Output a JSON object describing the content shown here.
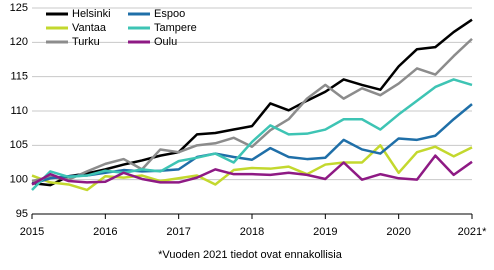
{
  "chart_data": {
    "type": "line",
    "note": "*Vuoden 2021 tiedot ovat ennakollisia",
    "x": [
      2015,
      2015.25,
      2015.5,
      2015.75,
      2016,
      2016.25,
      2016.5,
      2016.75,
      2017,
      2017.25,
      2017.5,
      2017.75,
      2018,
      2018.25,
      2018.5,
      2018.75,
      2019,
      2019.25,
      2019.5,
      2019.75,
      2020,
      2020.25,
      2020.5,
      2020.75,
      2021
    ],
    "xlim": [
      2015,
      2021
    ],
    "xticks": [
      2015,
      2016,
      2017,
      2018,
      2019,
      2020,
      {
        "value": 2021,
        "label": "2021*"
      }
    ],
    "ylim": [
      95,
      125
    ],
    "yticks": [
      95,
      100,
      105,
      110,
      115,
      120,
      125
    ],
    "grid": true,
    "legend": "top-left",
    "series": [
      {
        "name": "Helsinki",
        "color": "#000000",
        "values": [
          99.5,
          99.2,
          100.5,
          100.9,
          101.5,
          102.2,
          102.8,
          103.5,
          104,
          106.6,
          106.8,
          107.3,
          107.8,
          111.1,
          110.1,
          111.5,
          112.8,
          114.6,
          113.8,
          113.1,
          116.5,
          119,
          119.3,
          121.5,
          123.3
        ]
      },
      {
        "name": "Vantaa",
        "color": "#c3d82e",
        "values": [
          100.6,
          99.6,
          99.3,
          98.5,
          100.5,
          100.3,
          100.6,
          99.8,
          100.2,
          100.6,
          99.3,
          101.4,
          101.7,
          101.6,
          101.9,
          100.8,
          102.2,
          102.5,
          102.5,
          105,
          101,
          104,
          104.8,
          103.4,
          104.7
        ]
      },
      {
        "name": "Turku",
        "color": "#8c8c8c",
        "values": [
          99.8,
          100.4,
          100,
          101.2,
          102.3,
          103,
          101.5,
          104.4,
          104,
          105,
          105.3,
          106.1,
          104.8,
          107.2,
          108.8,
          111.8,
          113.8,
          111.8,
          113.3,
          112.3,
          114,
          116.2,
          115.3,
          118,
          120.5
        ]
      },
      {
        "name": "Espoo",
        "color": "#1f6fa8",
        "values": [
          99.4,
          100.2,
          100.5,
          100.6,
          101,
          101.4,
          101.2,
          101.3,
          101.5,
          103.3,
          103.8,
          103.3,
          102.9,
          104.6,
          103.3,
          103,
          103.2,
          105.8,
          104.4,
          103.8,
          106,
          105.8,
          106.4,
          108.8,
          111
        ]
      },
      {
        "name": "Tampere",
        "color": "#3ec4b4",
        "values": [
          98.5,
          101.2,
          100.4,
          100.6,
          101.3,
          101,
          101.5,
          101.2,
          102.7,
          103.2,
          103.8,
          102.5,
          105.5,
          107.9,
          106.6,
          106.7,
          107.3,
          108.8,
          108.8,
          107.3,
          109.5,
          111.5,
          113.5,
          114.6,
          113.8
        ]
      },
      {
        "name": "Oulu",
        "color": "#8e1a84",
        "values": [
          99.3,
          100.8,
          99.8,
          99.6,
          99.7,
          101,
          100.1,
          99.6,
          99.6,
          100.3,
          101.5,
          100.8,
          100.8,
          100.7,
          101,
          100.7,
          100.1,
          102.5,
          100,
          100.8,
          100.2,
          100,
          103.5,
          100.7,
          102.6
        ]
      }
    ]
  }
}
